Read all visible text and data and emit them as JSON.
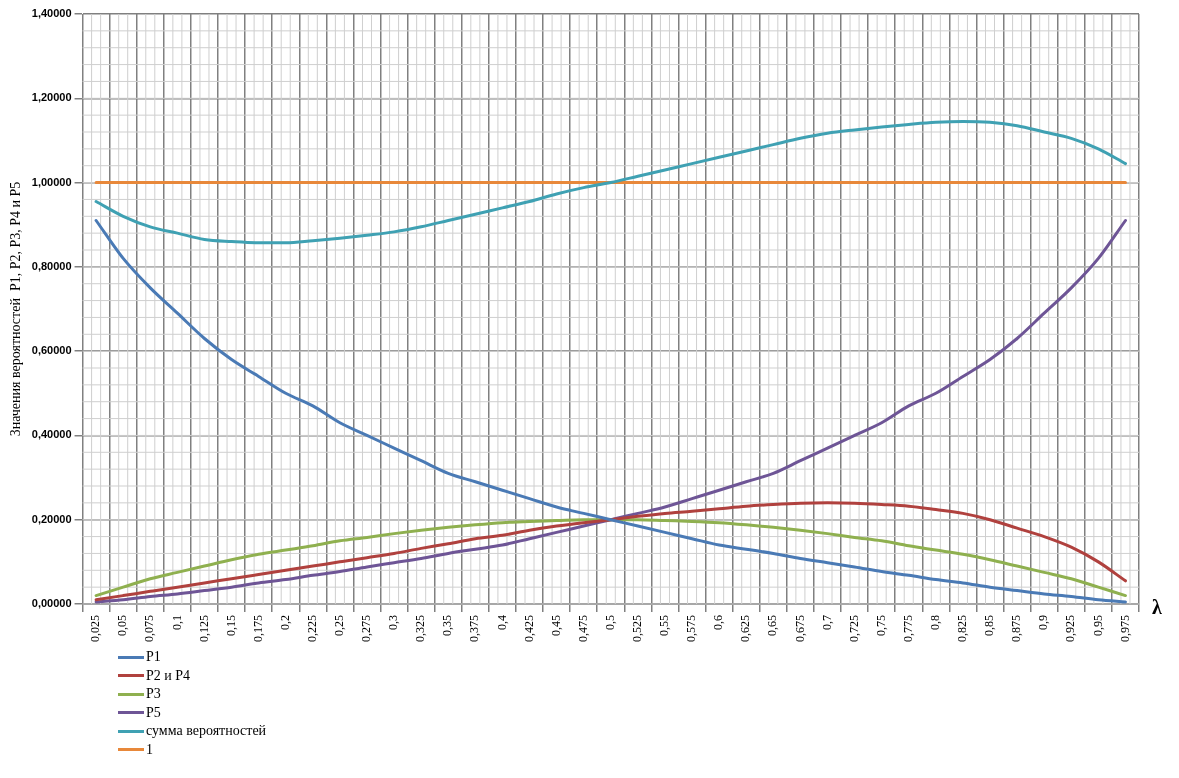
{
  "chart_data": {
    "type": "line",
    "xlabel": "λ",
    "ylabel": "Значения вероятностей  P1, P2, P3, P4 и P5",
    "categories": [
      "0,025",
      "0,05",
      "0,075",
      "0,1",
      "0,125",
      "0,15",
      "0,175",
      "0,2",
      "0,225",
      "0,25",
      "0,275",
      "0,3",
      "0,325",
      "0,35",
      "0,375",
      "0,4",
      "0,425",
      "0,45",
      "0,475",
      "0,5",
      "0,525",
      "0,55",
      "0,575",
      "0,6",
      "0,625",
      "0,65",
      "0,675",
      "0,7",
      "0,725",
      "0,75",
      "0,775",
      "0,8",
      "0,825",
      "0,85",
      "0,875",
      "0,9",
      "0,925",
      "0,95",
      "0,975"
    ],
    "series": [
      {
        "name": "P1",
        "color": "#4a7ab5",
        "values": [
          0.91,
          0.82,
          0.75,
          0.69,
          0.63,
          0.58,
          0.54,
          0.5,
          0.47,
          0.43,
          0.4,
          0.37,
          0.34,
          0.31,
          0.29,
          0.27,
          0.25,
          0.23,
          0.215,
          0.2,
          0.185,
          0.17,
          0.155,
          0.14,
          0.13,
          0.12,
          0.108,
          0.098,
          0.088,
          0.077,
          0.068,
          0.058,
          0.05,
          0.04,
          0.032,
          0.024,
          0.018,
          0.01,
          0.005
        ]
      },
      {
        "name": "P2 и P4",
        "color": "#b0413e",
        "values": [
          0.01,
          0.02,
          0.03,
          0.04,
          0.05,
          0.06,
          0.07,
          0.08,
          0.09,
          0.1,
          0.11,
          0.12,
          0.132,
          0.143,
          0.155,
          0.163,
          0.175,
          0.185,
          0.193,
          0.2,
          0.208,
          0.215,
          0.22,
          0.226,
          0.232,
          0.236,
          0.239,
          0.24,
          0.239,
          0.236,
          0.232,
          0.224,
          0.215,
          0.2,
          0.18,
          0.16,
          0.135,
          0.1,
          0.055
        ]
      },
      {
        "name": "P3",
        "color": "#8fb04f",
        "values": [
          0.02,
          0.04,
          0.06,
          0.075,
          0.09,
          0.105,
          0.118,
          0.128,
          0.138,
          0.15,
          0.158,
          0.167,
          0.175,
          0.182,
          0.188,
          0.193,
          0.196,
          0.198,
          0.2,
          0.2,
          0.2,
          0.198,
          0.196,
          0.193,
          0.188,
          0.182,
          0.175,
          0.167,
          0.158,
          0.15,
          0.138,
          0.128,
          0.118,
          0.105,
          0.09,
          0.075,
          0.06,
          0.04,
          0.02
        ]
      },
      {
        "name": "P5",
        "color": "#6e5596",
        "values": [
          0.005,
          0.01,
          0.018,
          0.024,
          0.032,
          0.04,
          0.05,
          0.058,
          0.068,
          0.077,
          0.088,
          0.098,
          0.108,
          0.12,
          0.13,
          0.14,
          0.155,
          0.17,
          0.185,
          0.2,
          0.215,
          0.23,
          0.25,
          0.27,
          0.29,
          0.31,
          0.34,
          0.37,
          0.4,
          0.43,
          0.47,
          0.5,
          0.54,
          0.58,
          0.63,
          0.69,
          0.75,
          0.82,
          0.91
        ]
      },
      {
        "name": "сумма вероятностей",
        "color": "#3fa1b3",
        "values": [
          0.955,
          0.92,
          0.895,
          0.88,
          0.865,
          0.86,
          0.857,
          0.857,
          0.862,
          0.868,
          0.875,
          0.883,
          0.895,
          0.91,
          0.925,
          0.94,
          0.955,
          0.973,
          0.988,
          1.0,
          1.015,
          1.03,
          1.045,
          1.06,
          1.075,
          1.09,
          1.105,
          1.117,
          1.125,
          1.132,
          1.138,
          1.143,
          1.145,
          1.143,
          1.135,
          1.12,
          1.105,
          1.08,
          1.045
        ]
      },
      {
        "name": "1",
        "color": "#e8883a",
        "values": [
          1,
          1,
          1,
          1,
          1,
          1,
          1,
          1,
          1,
          1,
          1,
          1,
          1,
          1,
          1,
          1,
          1,
          1,
          1,
          1,
          1,
          1,
          1,
          1,
          1,
          1,
          1,
          1,
          1,
          1,
          1,
          1,
          1,
          1,
          1,
          1,
          1,
          1,
          1
        ]
      }
    ],
    "ylim": [
      0,
      1.4
    ],
    "yticks": [
      {
        "value": 0,
        "label": "0,00000"
      },
      {
        "value": 0.2,
        "label": "0,20000"
      },
      {
        "value": 0.4,
        "label": "0,40000"
      },
      {
        "value": 0.6,
        "label": "0,60000"
      },
      {
        "value": 0.8,
        "label": "0,80000"
      },
      {
        "value": 1,
        "label": "1,00000"
      },
      {
        "value": 1.2,
        "label": "1,20000"
      },
      {
        "value": 1.4,
        "label": "1,40000"
      }
    ],
    "grid": true,
    "legend": "bottom left",
    "marker": "none",
    "line_style": "solid"
  }
}
